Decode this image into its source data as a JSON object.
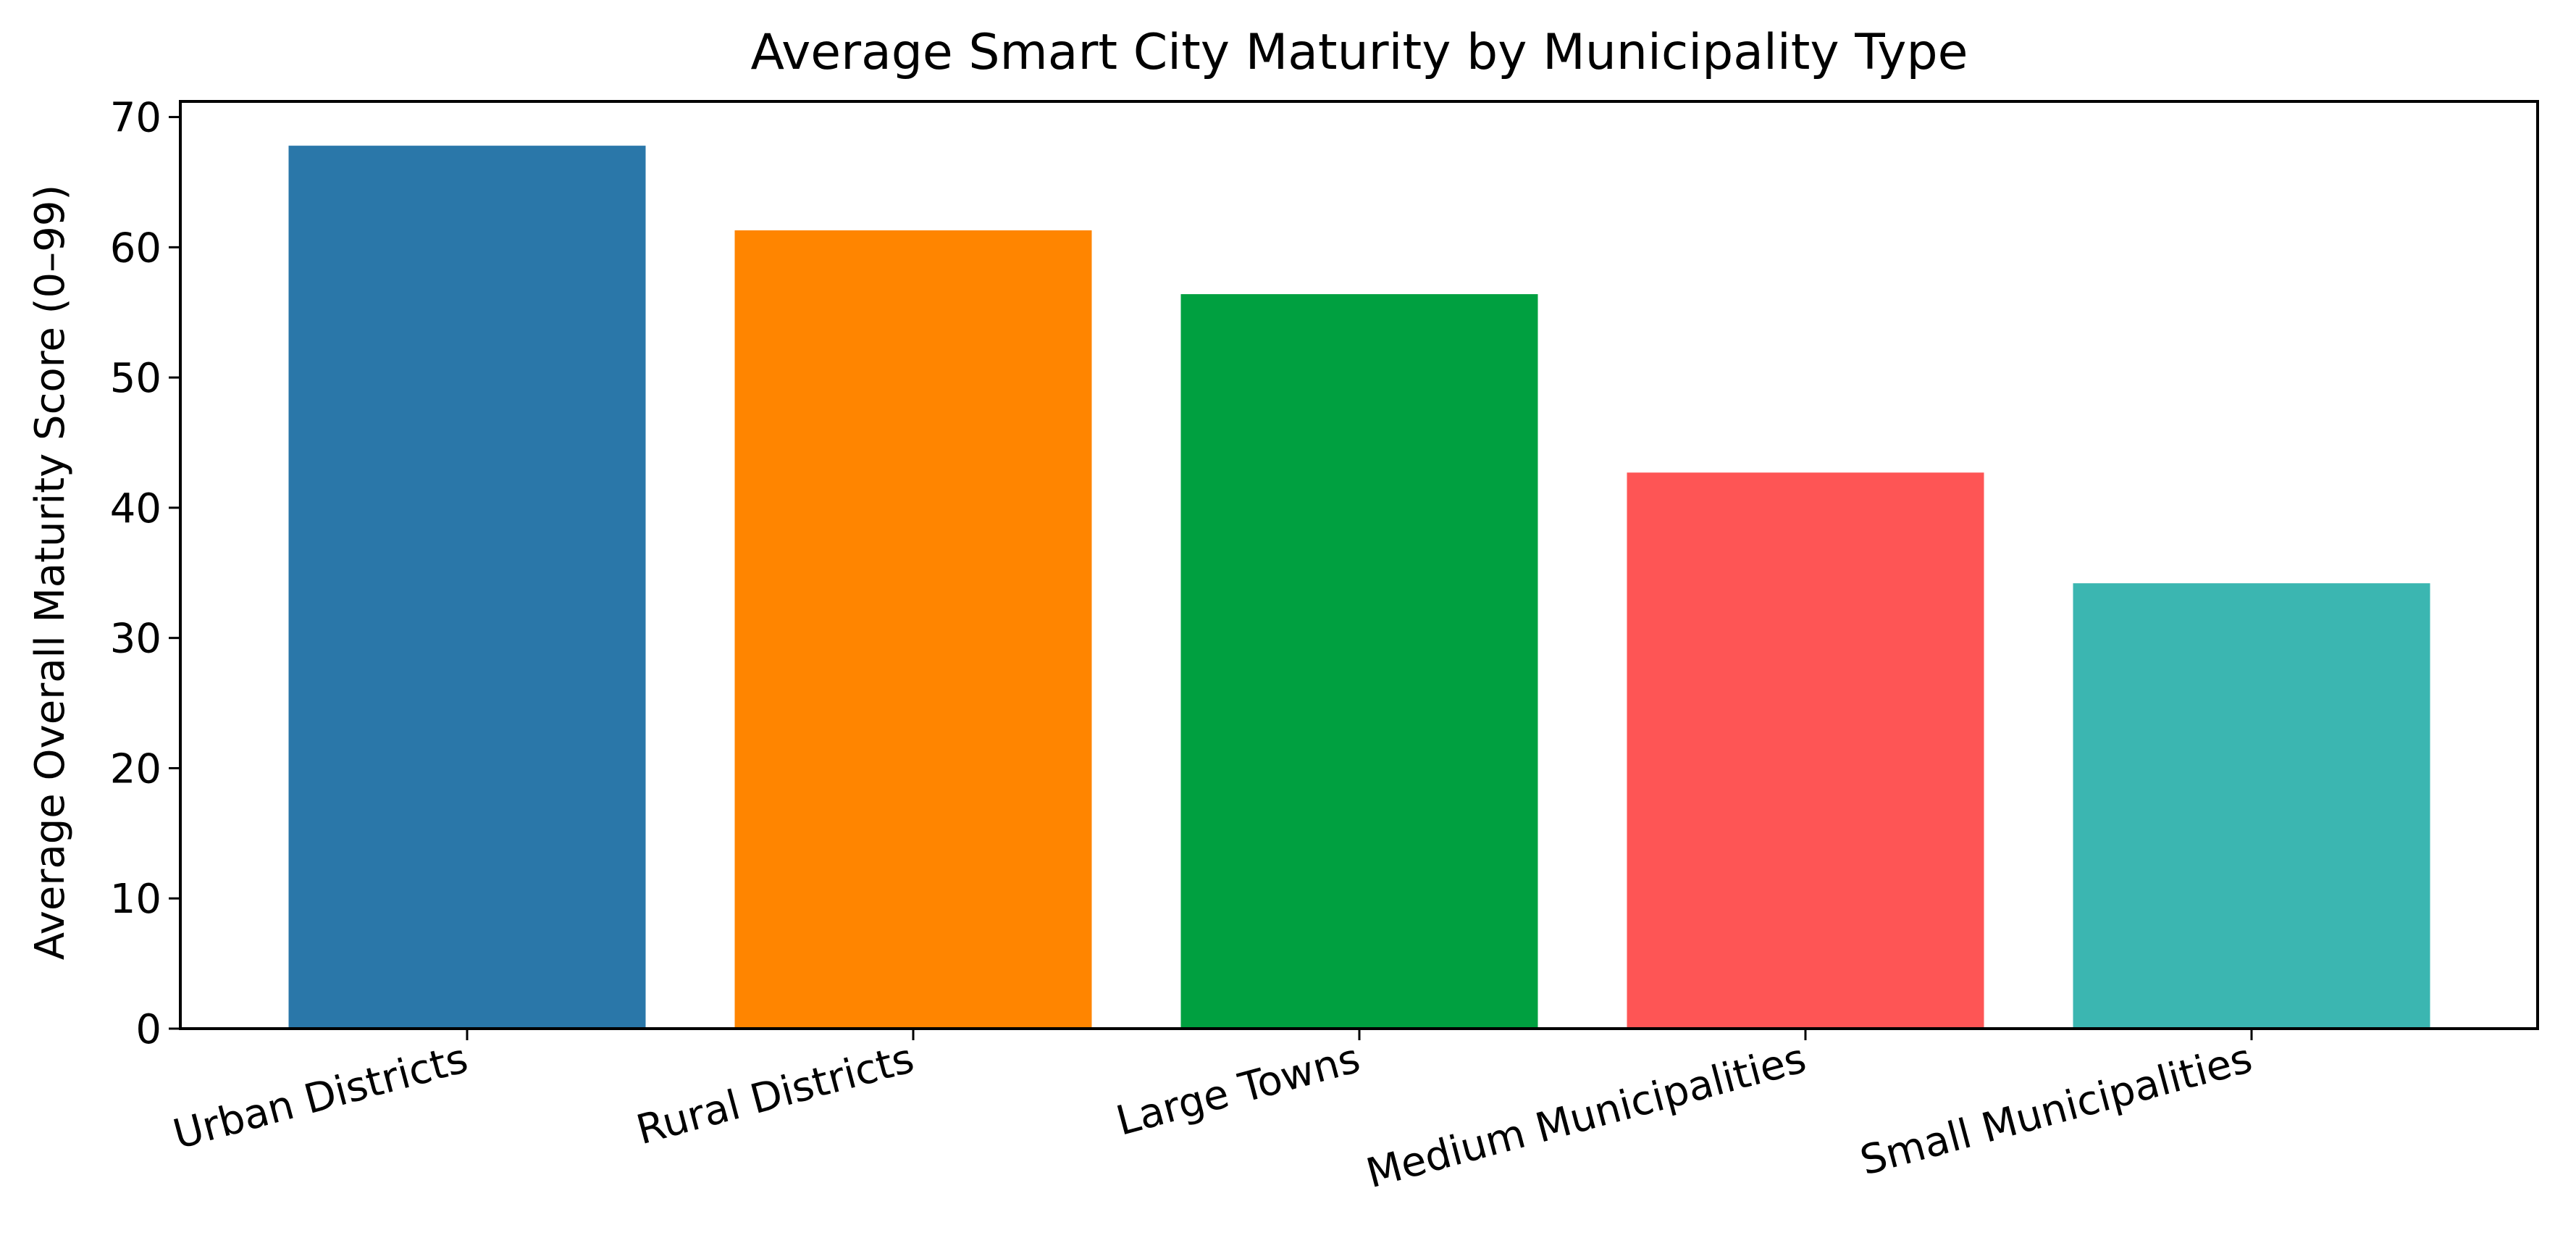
{
  "chart_data": {
    "type": "bar",
    "title": "Average Smart City Maturity by Municipality Type",
    "xlabel": "",
    "ylabel": "Average Overall Maturity Score (0–99)",
    "categories": [
      "Urban Districts",
      "Rural Districts",
      "Large Towns",
      "Medium Municipalities",
      "Small Municipalities"
    ],
    "values": [
      67.8,
      61.3,
      56.4,
      42.7,
      34.2
    ],
    "colors": [
      "#2a77a9",
      "#ff8500",
      "#00a040",
      "#fe5555",
      "#3bb6b1"
    ],
    "ylim": [
      0,
      71.2
    ],
    "yticks": [
      0,
      10,
      20,
      30,
      40,
      50,
      60,
      70
    ],
    "ytick_labels": [
      "0",
      "10",
      "20",
      "30",
      "40",
      "50",
      "60",
      "70"
    ],
    "grid": false,
    "legend": "none",
    "xtick_rotation_deg": -15
  }
}
